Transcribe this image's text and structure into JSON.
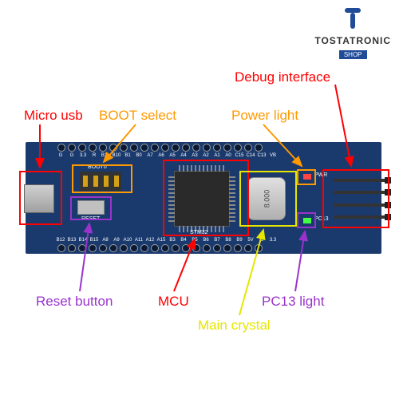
{
  "logo": {
    "text": "TOSTATRONIC",
    "sub": "SHOP"
  },
  "labels": {
    "debug": "Debug interface",
    "micro_usb": "Micro usb",
    "boot_select": "BOOT select",
    "power_light": "Power light",
    "reset_button": "Reset button",
    "mcu": "MCU",
    "main_crystal": "Main crystal",
    "pc13_light": "PC13 light"
  },
  "colors": {
    "debug": "#ff0000",
    "micro_usb": "#ff0000",
    "boot_select": "#ff9900",
    "power_light": "#ff9900",
    "reset_button": "#9933cc",
    "mcu": "#ff0000",
    "main_crystal": "#e6e600",
    "pc13_light": "#9933cc",
    "board_bg": "#1a3a6e"
  },
  "layout": {
    "label_fontsize": 17,
    "box_stroke": 2,
    "arrow_stroke": 2
  },
  "silk": {
    "stm32": "STM32",
    "pwr": "PWR",
    "pc13": "PC13",
    "boot0": "BOOT0",
    "reset": "RESET"
  },
  "crystal_text": "8.000",
  "pins_top": [
    "G",
    "G",
    "3.3",
    "R",
    "B11",
    "B10",
    "B1",
    "B0",
    "A7",
    "A6",
    "A5",
    "A4",
    "A3",
    "A2",
    "A1",
    "A0",
    "C15",
    "C14",
    "C13",
    "VB"
  ],
  "pins_bot": [
    "B12",
    "B13",
    "B14",
    "B15",
    "A8",
    "A9",
    "A10",
    "A11",
    "A12",
    "A15",
    "B3",
    "B4",
    "B5",
    "B6",
    "B7",
    "B8",
    "B9",
    "5V",
    "G",
    "3.3"
  ]
}
